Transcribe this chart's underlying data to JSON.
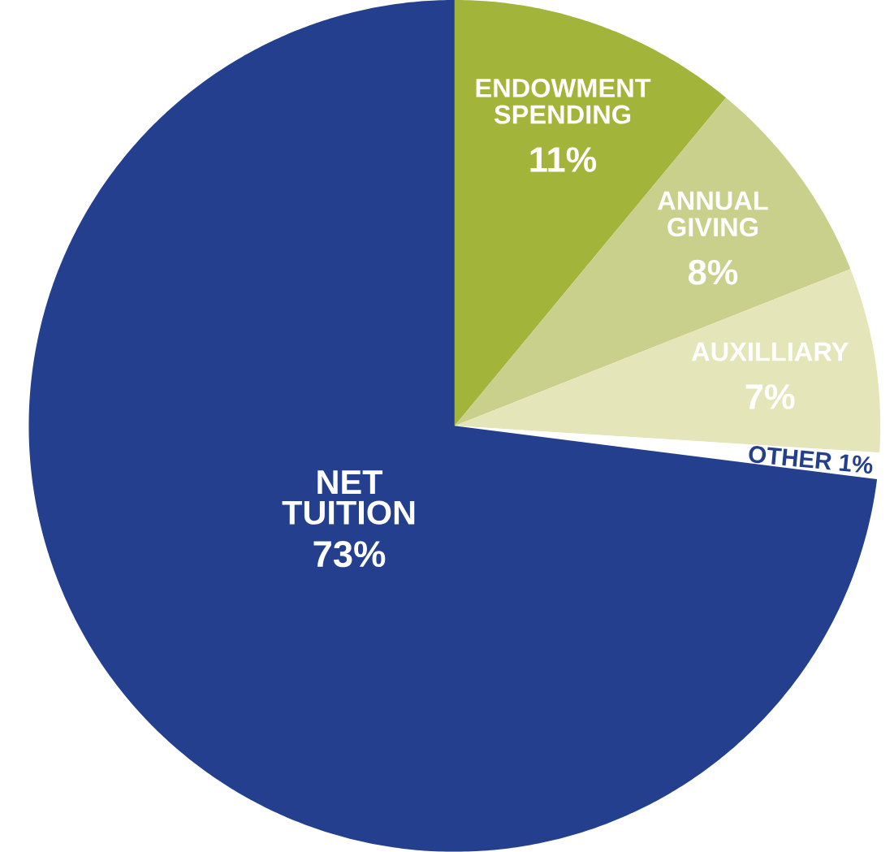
{
  "chart_data": {
    "type": "pie",
    "categories": [
      "ENDOWMENT SPENDING",
      "ANNUAL GIVING",
      "AUXILLIARY",
      "OTHER",
      "NET TUITION"
    ],
    "values": [
      11,
      8,
      7,
      1,
      73
    ],
    "colors": [
      "#a2b43a",
      "#c9d08c",
      "#e4e6b9",
      "#ffffff",
      "#243f8d"
    ],
    "value_labels": [
      "11%",
      "8%",
      "7%",
      "1%",
      "73%"
    ]
  }
}
